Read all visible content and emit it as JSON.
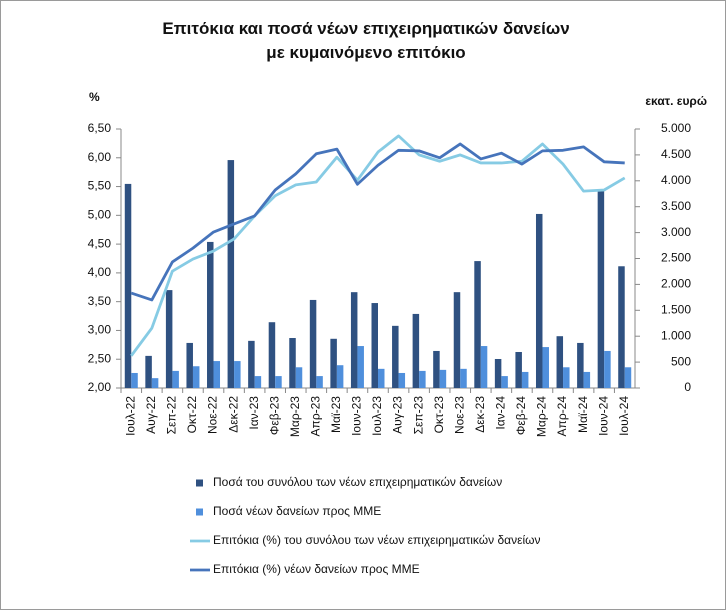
{
  "chart_data": {
    "type": "combo",
    "title": "Επιτόκια και ποσά νέων επιχειρηματικών δανείων με κυμαινόμενο επιτόκιο",
    "y_label": "%",
    "y2_label": "εκατ. ευρώ",
    "categories": [
      "Ιουλ-22",
      "Αυγ-22",
      "Σεπ-22",
      "Οκτ-22",
      "Νοε-22",
      "Δεκ-22",
      "Ιαν-23",
      "Φεβ-23",
      "Μαρ-23",
      "Απρ-23",
      "Μαϊ-23",
      "Ιουν-23",
      "Ιουλ-23",
      "Αυγ-23",
      "Σεπ-23",
      "Οκτ-23",
      "Νοε-23",
      "Δεκ-23",
      "Ιαν-24",
      "Φεβ-24",
      "Μαρ-24",
      "Απρ-24",
      "Μαϊ-24",
      "Ιουν-24",
      "Ιουλ-24"
    ],
    "ylim": [
      2,
      6.5
    ],
    "yticks": [
      {
        "value": 2,
        "label": "2,00"
      },
      {
        "value": 2.5,
        "label": "2,50"
      },
      {
        "value": 3,
        "label": "3,00"
      },
      {
        "value": 3.5,
        "label": "3,50"
      },
      {
        "value": 4,
        "label": "4,00"
      },
      {
        "value": 4.5,
        "label": "4,50"
      },
      {
        "value": 5,
        "label": "5,00"
      },
      {
        "value": 5.5,
        "label": "5,50"
      },
      {
        "value": 6,
        "label": "6,00"
      },
      {
        "value": 6.5,
        "label": "6,50"
      }
    ],
    "y2lim": [
      0,
      5000
    ],
    "y2ticks": [
      0,
      500,
      {
        "value": 1000,
        "label": "1.000"
      },
      {
        "value": 1500,
        "label": "1.500"
      },
      {
        "value": 2000,
        "label": "2.000"
      },
      {
        "value": 2500,
        "label": "2.500"
      },
      {
        "value": 3000,
        "label": "3.000"
      },
      {
        "value": 3500,
        "label": "3.500"
      },
      {
        "value": 4000,
        "label": "4.000"
      },
      {
        "value": 4500,
        "label": "4.500"
      },
      {
        "value": 5000,
        "label": "5.000"
      }
    ],
    "series": [
      {
        "name": "Ποσά του συνόλου των νέων επιχειρηματικών δανείων",
        "type": "bar",
        "axis": "y2",
        "color": "#2f5181",
        "values": [
          3940,
          620,
          1890,
          870,
          2820,
          4400,
          910,
          1270,
          965,
          1700,
          950,
          1850,
          1640,
          1200,
          1430,
          715,
          1850,
          2450,
          560,
          695,
          3360,
          1000,
          870,
          3800,
          2350
        ]
      },
      {
        "name": "Ποσά νέων δανείων προς ΜΜΕ",
        "type": "bar",
        "axis": "y2",
        "color": "#4f8fdc",
        "values": [
          290,
          190,
          330,
          420,
          520,
          520,
          230,
          230,
          400,
          230,
          440,
          810,
          370,
          290,
          330,
          350,
          370,
          810,
          230,
          310,
          790,
          400,
          310,
          715,
          400
        ]
      },
      {
        "name": "Επιτόκια (%) του συνόλου των νέων επιχειρηματικών δανείων",
        "type": "line",
        "color": "#86cbe4",
        "values": [
          2.56,
          3.04,
          4.03,
          4.24,
          4.38,
          4.59,
          4.99,
          5.34,
          5.53,
          5.58,
          6.01,
          5.61,
          6.1,
          6.38,
          6.05,
          5.94,
          6.05,
          5.91,
          5.91,
          5.94,
          6.24,
          5.89,
          5.42,
          5.44,
          5.65
        ]
      },
      {
        "name": "Επιτόκια (%) νέων δανείων προς ΜΜΕ",
        "type": "line",
        "color": "#4674bb",
        "values": [
          3.65,
          3.53,
          4.19,
          4.43,
          4.71,
          4.85,
          4.99,
          5.44,
          5.72,
          6.07,
          6.15,
          5.54,
          5.87,
          6.13,
          6.12,
          6.0,
          6.24,
          5.98,
          6.08,
          5.89,
          6.12,
          6.13,
          6.19,
          5.93,
          5.91
        ]
      }
    ]
  }
}
